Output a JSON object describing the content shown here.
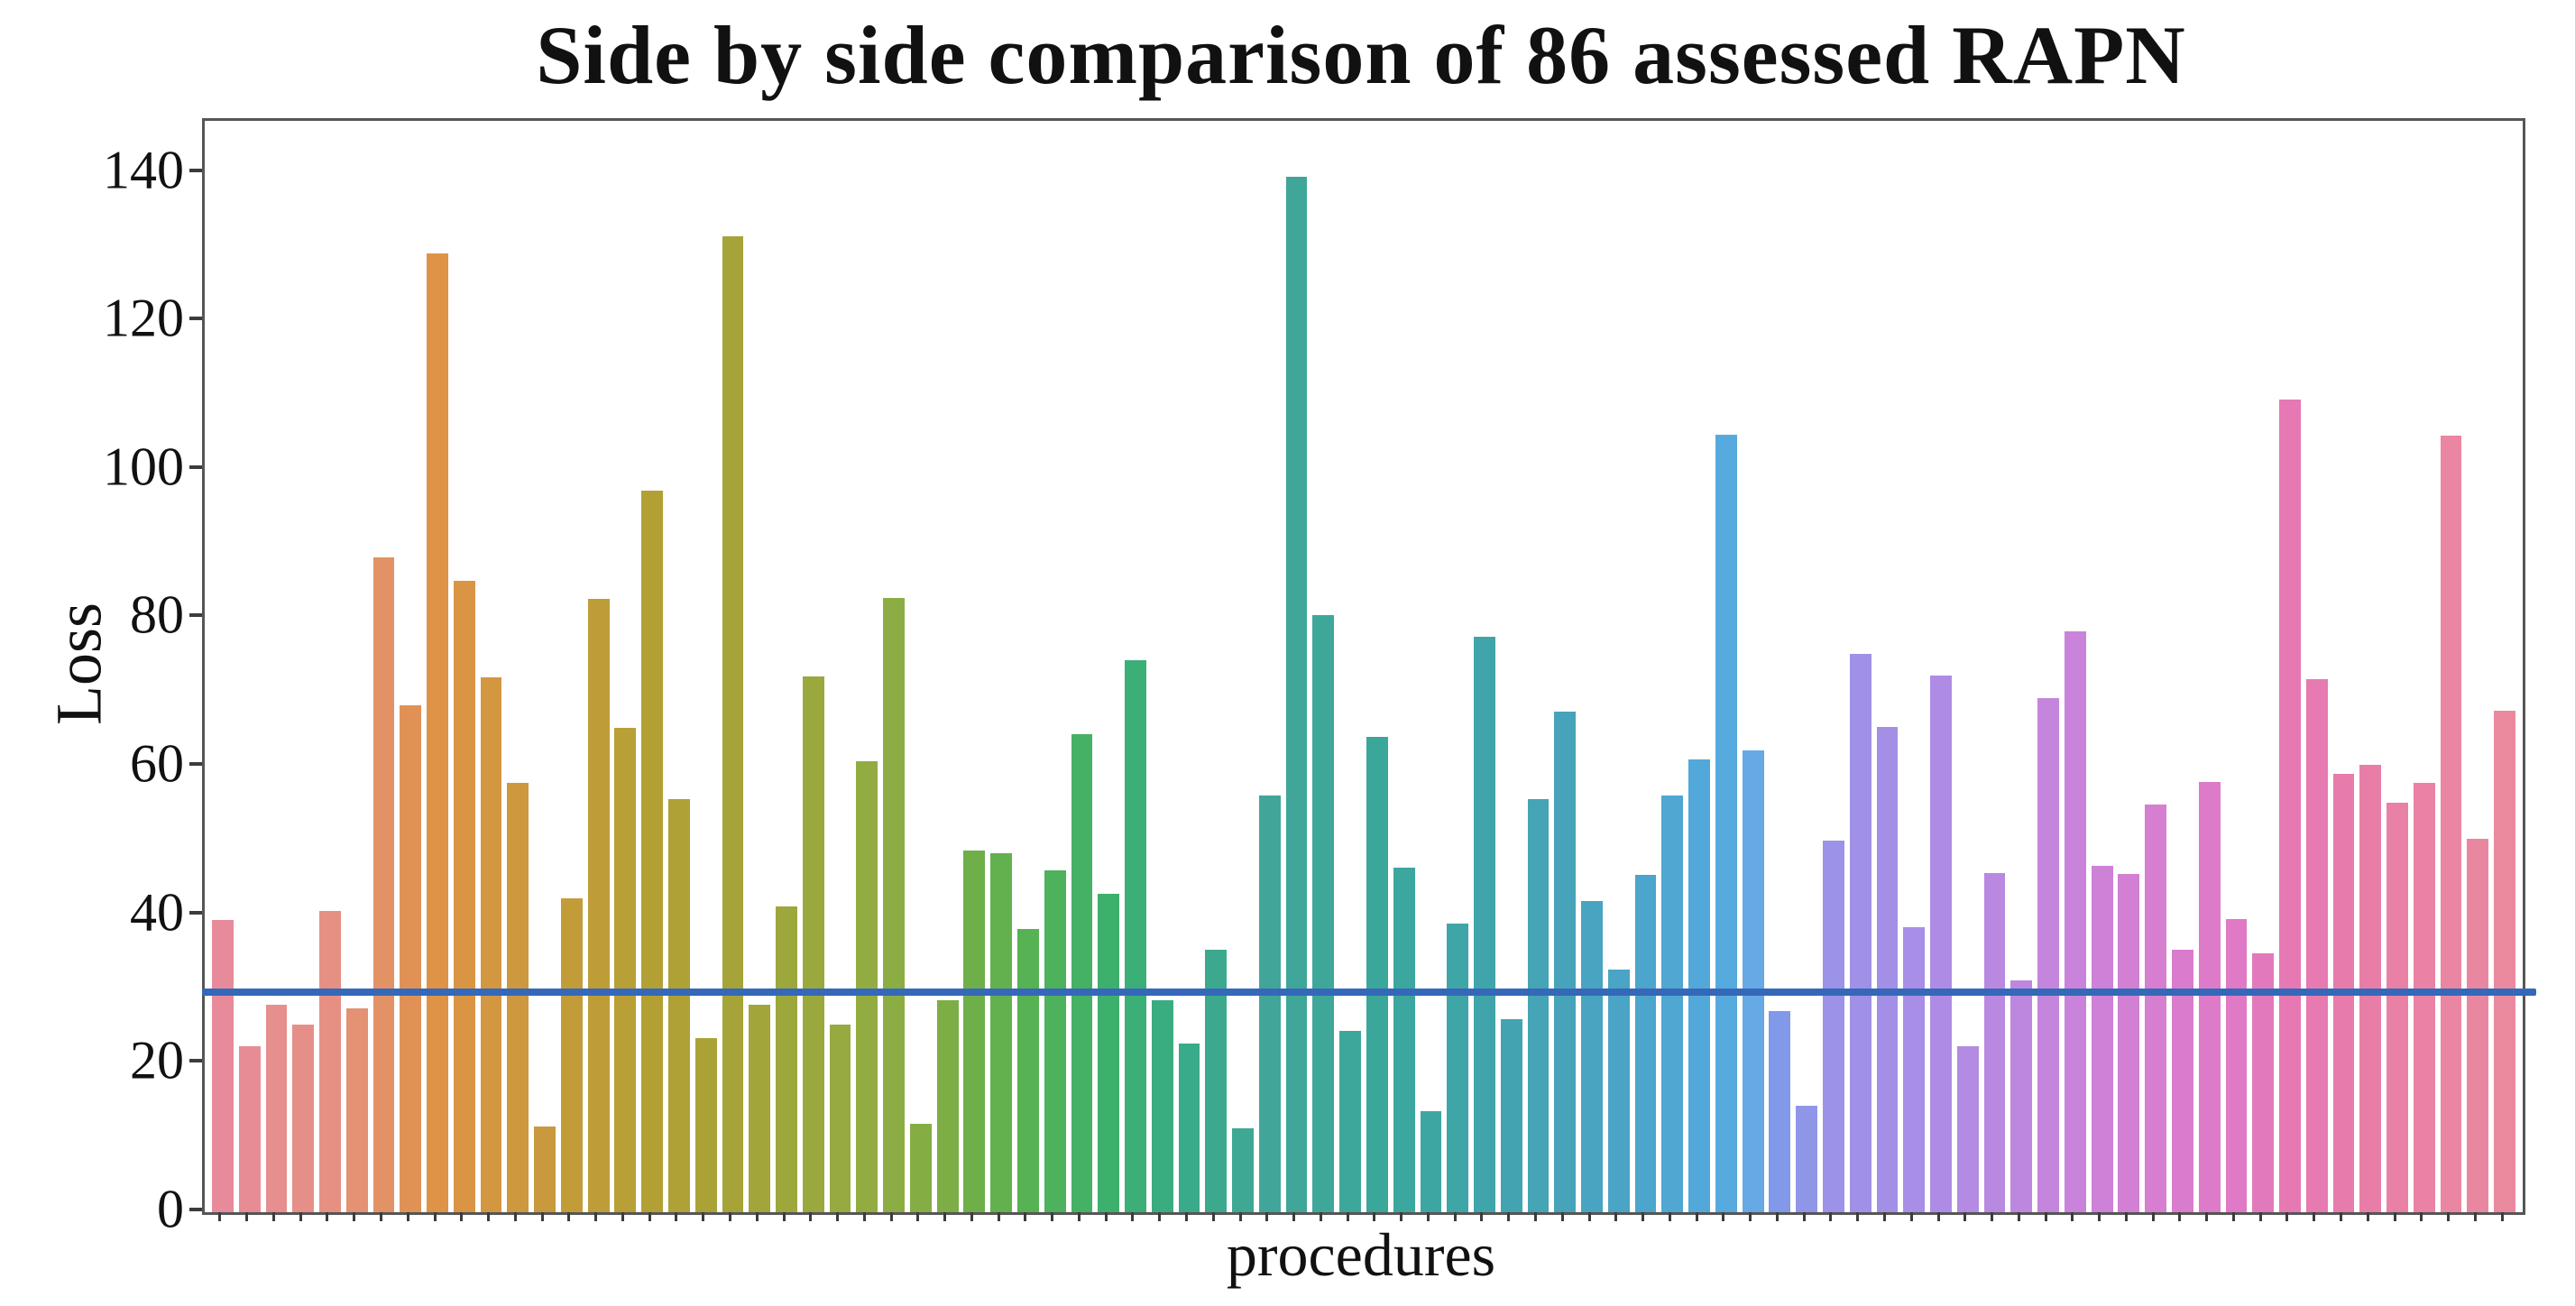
{
  "title": "Side by side comparison of 86 assessed RAPN",
  "chart_data": {
    "type": "bar",
    "title": "Side by side comparison of 86 assessed RAPN",
    "xlabel": "procedures",
    "ylabel": "Loss",
    "n_bars": 86,
    "categories_note": "86 unlabeled procedures (one tick per bar, no x tick labels)",
    "values": [
      39.4,
      22.3,
      27.9,
      25.3,
      40.6,
      27.5,
      88.2,
      68.3,
      129.2,
      85.1,
      72.0,
      57.8,
      11.5,
      42.3,
      82.6,
      65.2,
      97.2,
      55.6,
      23.5,
      131.4,
      27.9,
      41.2,
      72.2,
      25.3,
      60.8,
      82.7,
      11.9,
      28.6,
      48.7,
      48.3,
      38.1,
      46.1,
      64.4,
      42.9,
      74.4,
      28.6,
      22.7,
      35.3,
      11.3,
      56.1,
      139.5,
      80.4,
      24.4,
      64.0,
      46.4,
      13.6,
      38.9,
      77.5,
      26.0,
      55.7,
      67.4,
      41.9,
      32.7,
      45.4,
      56.1,
      61.0,
      104.7,
      62.2,
      27.1,
      14.3,
      50.1,
      75.2,
      65.4,
      38.4,
      72.3,
      22.4,
      45.7,
      31.2,
      69.2,
      78.2,
      46.7,
      45.6,
      54.9,
      35.4,
      57.9,
      39.5,
      34.9,
      109.5,
      71.8,
      59.0,
      60.2,
      55.2,
      57.8,
      104.6,
      50.3,
      67.6
    ],
    "yticks": [
      0,
      20,
      40,
      60,
      80,
      100,
      120,
      140
    ],
    "ylim": [
      0,
      147
    ],
    "grid": false,
    "legend": null,
    "reference_line": {
      "value": 29.3,
      "color": "#3568b8"
    },
    "palette_note": "husl-style rainbow across 86 bars",
    "palette_anchors": [
      [
        0,
        "#e78b9b"
      ],
      [
        4,
        "#e69083"
      ],
      [
        8,
        "#de9347"
      ],
      [
        13,
        "#c39c3a"
      ],
      [
        16,
        "#b3a034"
      ],
      [
        19,
        "#a6a338"
      ],
      [
        24,
        "#93ac42"
      ],
      [
        27,
        "#7cae45"
      ],
      [
        30,
        "#56b253"
      ],
      [
        33,
        "#3db06d"
      ],
      [
        36,
        "#39ab8a"
      ],
      [
        39,
        "#41a699"
      ],
      [
        43,
        "#3aa79a"
      ],
      [
        47,
        "#40a5ab"
      ],
      [
        50,
        "#47a3ba"
      ],
      [
        53,
        "#4ba5cc"
      ],
      [
        56,
        "#56aade"
      ],
      [
        57,
        "#66a9e4"
      ],
      [
        58,
        "#8199e8"
      ],
      [
        60,
        "#9c92e8"
      ],
      [
        63,
        "#a88ee6"
      ],
      [
        66,
        "#b989e2"
      ],
      [
        69,
        "#c983da"
      ],
      [
        72,
        "#d67ed0"
      ],
      [
        75,
        "#e079c6"
      ],
      [
        77,
        "#e678b4"
      ],
      [
        80,
        "#e87da8"
      ],
      [
        85,
        "#eb8a9e"
      ]
    ],
    "axis_color": "#565656"
  }
}
